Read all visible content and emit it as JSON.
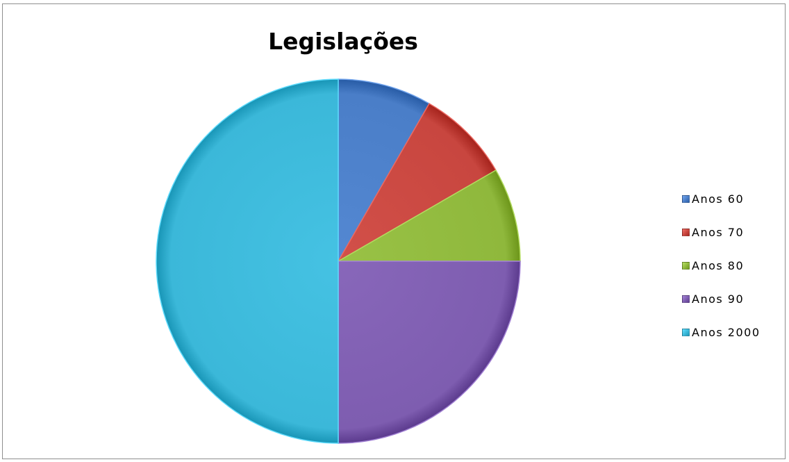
{
  "chart_data": {
    "type": "pie",
    "title": "Legislações",
    "legend_position": "right",
    "slices": [
      {
        "label": "Anos 60",
        "value": 1,
        "color": "#4a7ec8"
      },
      {
        "label": "Anos 70",
        "value": 1,
        "color": "#c8463f"
      },
      {
        "label": "Anos 80",
        "value": 1,
        "color": "#8fb83c"
      },
      {
        "label": "Anos 90",
        "value": 3,
        "color": "#7e5db0"
      },
      {
        "label": "Anos 2000",
        "value": 6,
        "color": "#3bb8d9"
      }
    ],
    "start_angle_deg": 0,
    "direction": "clockwise"
  }
}
